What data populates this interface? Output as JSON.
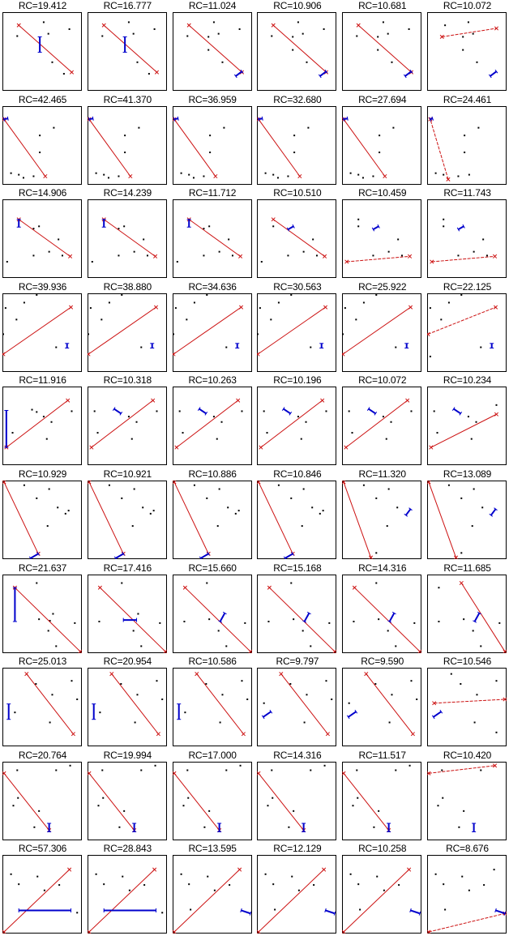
{
  "figure": {
    "rows": 10,
    "cols": 6,
    "label_prefix": "RC="
  },
  "colors": {
    "points": "#000000",
    "red_line": "#cc1111",
    "blue_segment": "#0000cc",
    "frame": "#000000"
  },
  "chart_data": {
    "type": "scatter",
    "title": "",
    "xlabel": "",
    "ylabel": "",
    "grid": false,
    "legend": null,
    "note": "10x6 grid of small-multiple scatter panels (no axes/ticks). Each panel: black data points, a red line segment with x-markers at ends, a blue short segment with end ticks; titled RC=value. Coordinates normalized 0-100 (x right, y down).",
    "panels": [
      {
        "title": "RC=19.412",
        "rc": 19.412,
        "points": [
          [
            18,
            30
          ],
          [
            52,
            12
          ],
          [
            58,
            27
          ],
          [
            85,
            21
          ],
          [
            63,
            64
          ],
          [
            78,
            79
          ]
        ],
        "red": [
          [
            20,
            16
          ],
          [
            88,
            77
          ]
        ],
        "red_dashed": false,
        "blue": [
          [
            47,
            31
          ],
          [
            47,
            51
          ]
        ]
      },
      {
        "title": "RC=16.777",
        "rc": 16.777,
        "points": [
          [
            18,
            30
          ],
          [
            52,
            12
          ],
          [
            58,
            27
          ],
          [
            85,
            21
          ],
          [
            63,
            64
          ],
          [
            78,
            79
          ]
        ],
        "red": [
          [
            20,
            16
          ],
          [
            88,
            77
          ]
        ],
        "red_dashed": false,
        "blue": [
          [
            47,
            31
          ],
          [
            47,
            51
          ]
        ]
      },
      {
        "title": "RC=11.024",
        "rc": 11.024,
        "points": [
          [
            18,
            30
          ],
          [
            52,
            12
          ],
          [
            58,
            27
          ],
          [
            85,
            21
          ],
          [
            45,
            31
          ],
          [
            45,
            48
          ],
          [
            63,
            64
          ]
        ],
        "red": [
          [
            20,
            16
          ],
          [
            88,
            77
          ]
        ],
        "red_dashed": false,
        "blue": [
          [
            80,
            82
          ],
          [
            88,
            76
          ]
        ]
      },
      {
        "title": "RC=10.906",
        "rc": 10.906,
        "points": [
          [
            18,
            30
          ],
          [
            52,
            12
          ],
          [
            58,
            27
          ],
          [
            85,
            21
          ],
          [
            45,
            31
          ],
          [
            45,
            48
          ],
          [
            63,
            64
          ]
        ],
        "red": [
          [
            20,
            16
          ],
          [
            88,
            77
          ]
        ],
        "red_dashed": false,
        "blue": [
          [
            80,
            82
          ],
          [
            88,
            76
          ]
        ]
      },
      {
        "title": "RC=10.681",
        "rc": 10.681,
        "points": [
          [
            18,
            30
          ],
          [
            52,
            12
          ],
          [
            58,
            27
          ],
          [
            85,
            21
          ],
          [
            45,
            31
          ],
          [
            45,
            48
          ],
          [
            63,
            64
          ]
        ],
        "red": [
          [
            20,
            16
          ],
          [
            88,
            77
          ]
        ],
        "red_dashed": false,
        "blue": [
          [
            80,
            82
          ],
          [
            88,
            76
          ]
        ]
      },
      {
        "title": "RC=10.072",
        "rc": 10.072,
        "points": [
          [
            22,
            16
          ],
          [
            52,
            12
          ],
          [
            58,
            27
          ],
          [
            45,
            31
          ],
          [
            45,
            48
          ],
          [
            63,
            64
          ]
        ],
        "red": [
          [
            18,
            31
          ],
          [
            88,
            20
          ]
        ],
        "red_dashed": true,
        "blue": [
          [
            80,
            82
          ],
          [
            88,
            76
          ]
        ]
      },
      {
        "title": "RC=42.465",
        "rc": 42.465,
        "points": [
          [
            65,
            27
          ],
          [
            47,
            37
          ],
          [
            47,
            59
          ],
          [
            10,
            86
          ],
          [
            20,
            88
          ],
          [
            26,
            92
          ],
          [
            39,
            90
          ]
        ],
        "red": [
          [
            54,
            90
          ],
          [
            1,
            16
          ]
        ],
        "red_dashed": false,
        "blue": [
          [
            1,
            16
          ],
          [
            6,
            15
          ]
        ]
      },
      {
        "title": "RC=41.370",
        "rc": 41.37,
        "points": [
          [
            65,
            27
          ],
          [
            47,
            37
          ],
          [
            47,
            59
          ],
          [
            10,
            86
          ],
          [
            20,
            88
          ],
          [
            26,
            92
          ],
          [
            39,
            90
          ]
        ],
        "red": [
          [
            54,
            90
          ],
          [
            1,
            16
          ]
        ],
        "red_dashed": false,
        "blue": [
          [
            1,
            16
          ],
          [
            6,
            15
          ]
        ]
      },
      {
        "title": "RC=36.959",
        "rc": 36.959,
        "points": [
          [
            65,
            27
          ],
          [
            47,
            37
          ],
          [
            47,
            59
          ],
          [
            10,
            86
          ],
          [
            20,
            88
          ],
          [
            26,
            92
          ],
          [
            39,
            90
          ]
        ],
        "red": [
          [
            54,
            90
          ],
          [
            1,
            16
          ]
        ],
        "red_dashed": false,
        "blue": [
          [
            1,
            16
          ],
          [
            6,
            15
          ]
        ]
      },
      {
        "title": "RC=32.680",
        "rc": 32.68,
        "points": [
          [
            65,
            27
          ],
          [
            47,
            37
          ],
          [
            47,
            59
          ],
          [
            10,
            86
          ],
          [
            20,
            88
          ],
          [
            26,
            92
          ],
          [
            39,
            90
          ]
        ],
        "red": [
          [
            54,
            90
          ],
          [
            1,
            16
          ]
        ],
        "red_dashed": false,
        "blue": [
          [
            1,
            16
          ],
          [
            6,
            15
          ]
        ]
      },
      {
        "title": "RC=27.694",
        "rc": 27.694,
        "points": [
          [
            65,
            27
          ],
          [
            47,
            37
          ],
          [
            47,
            59
          ],
          [
            10,
            86
          ],
          [
            20,
            88
          ],
          [
            26,
            92
          ],
          [
            39,
            90
          ]
        ],
        "red": [
          [
            54,
            90
          ],
          [
            1,
            16
          ]
        ],
        "red_dashed": false,
        "blue": [
          [
            1,
            16
          ],
          [
            6,
            15
          ]
        ]
      },
      {
        "title": "RC=24.461",
        "rc": 24.461,
        "points": [
          [
            65,
            27
          ],
          [
            47,
            37
          ],
          [
            47,
            59
          ],
          [
            10,
            86
          ],
          [
            20,
            88
          ],
          [
            39,
            90
          ],
          [
            53,
            88
          ]
        ],
        "red": [
          [
            26,
            94
          ],
          [
            3,
            16
          ]
        ],
        "red_dashed": true,
        "blue": [
          [
            3,
            16
          ],
          [
            6,
            15
          ]
        ]
      },
      {
        "title": "RC=14.906",
        "rc": 14.906,
        "points": [
          [
            39,
            37
          ],
          [
            46,
            34
          ],
          [
            71,
            51
          ],
          [
            59,
            67
          ],
          [
            39,
            72
          ],
          [
            76,
            72
          ],
          [
            5,
            80
          ]
        ],
        "red": [
          [
            20,
            25
          ],
          [
            86,
            73
          ]
        ],
        "red_dashed": false,
        "blue": [
          [
            20,
            25
          ],
          [
            20,
            35
          ]
        ]
      },
      {
        "title": "RC=14.239",
        "rc": 14.239,
        "points": [
          [
            39,
            37
          ],
          [
            46,
            34
          ],
          [
            71,
            51
          ],
          [
            59,
            67
          ],
          [
            39,
            72
          ],
          [
            76,
            72
          ],
          [
            5,
            80
          ]
        ],
        "red": [
          [
            20,
            25
          ],
          [
            86,
            73
          ]
        ],
        "red_dashed": false,
        "blue": [
          [
            20,
            25
          ],
          [
            20,
            35
          ]
        ]
      },
      {
        "title": "RC=11.712",
        "rc": 11.712,
        "points": [
          [
            39,
            37
          ],
          [
            46,
            34
          ],
          [
            71,
            51
          ],
          [
            59,
            67
          ],
          [
            39,
            72
          ],
          [
            76,
            72
          ],
          [
            5,
            80
          ]
        ],
        "red": [
          [
            20,
            25
          ],
          [
            86,
            73
          ]
        ],
        "red_dashed": false,
        "blue": [
          [
            20,
            25
          ],
          [
            20,
            35
          ]
        ]
      },
      {
        "title": "RC=10.510",
        "rc": 10.51,
        "points": [
          [
            20,
            34
          ],
          [
            71,
            51
          ],
          [
            59,
            67
          ],
          [
            39,
            72
          ],
          [
            76,
            72
          ],
          [
            5,
            80
          ]
        ],
        "red": [
          [
            20,
            25
          ],
          [
            86,
            73
          ]
        ],
        "red_dashed": false,
        "blue": [
          [
            39,
            38
          ],
          [
            46,
            34
          ]
        ]
      },
      {
        "title": "RC=10.459",
        "rc": 10.459,
        "points": [
          [
            20,
            25
          ],
          [
            20,
            34
          ],
          [
            71,
            51
          ],
          [
            59,
            67
          ],
          [
            39,
            72
          ],
          [
            76,
            72
          ]
        ],
        "red": [
          [
            5,
            80
          ],
          [
            86,
            73
          ]
        ],
        "red_dashed": true,
        "blue": [
          [
            39,
            38
          ],
          [
            46,
            34
          ]
        ]
      },
      {
        "title": "RC=11.743",
        "rc": 11.743,
        "points": [
          [
            20,
            25
          ],
          [
            20,
            34
          ],
          [
            71,
            51
          ],
          [
            59,
            67
          ],
          [
            39,
            72
          ],
          [
            76,
            72
          ]
        ],
        "red": [
          [
            5,
            80
          ],
          [
            86,
            73
          ]
        ],
        "red_dashed": true,
        "blue": [
          [
            39,
            38
          ],
          [
            46,
            34
          ]
        ]
      },
      {
        "title": "RC=39.936",
        "rc": 39.936,
        "points": [
          [
            43,
            1
          ],
          [
            27,
            11
          ],
          [
            3,
            18
          ],
          [
            17,
            33
          ],
          [
            0,
            52
          ],
          [
            68,
            69
          ]
        ],
        "red": [
          [
            0,
            78
          ],
          [
            87,
            17
          ]
        ],
        "red_dashed": false,
        "blue": [
          [
            82,
            64
          ],
          [
            82,
            70
          ]
        ]
      },
      {
        "title": "RC=38.880",
        "rc": 38.88,
        "points": [
          [
            43,
            1
          ],
          [
            27,
            11
          ],
          [
            3,
            18
          ],
          [
            17,
            33
          ],
          [
            0,
            52
          ],
          [
            68,
            69
          ]
        ],
        "red": [
          [
            0,
            78
          ],
          [
            87,
            17
          ]
        ],
        "red_dashed": false,
        "blue": [
          [
            82,
            64
          ],
          [
            82,
            70
          ]
        ]
      },
      {
        "title": "RC=34.636",
        "rc": 34.636,
        "points": [
          [
            43,
            1
          ],
          [
            27,
            11
          ],
          [
            3,
            18
          ],
          [
            17,
            33
          ],
          [
            0,
            52
          ],
          [
            68,
            69
          ]
        ],
        "red": [
          [
            0,
            78
          ],
          [
            87,
            17
          ]
        ],
        "red_dashed": false,
        "blue": [
          [
            82,
            64
          ],
          [
            82,
            70
          ]
        ]
      },
      {
        "title": "RC=30.563",
        "rc": 30.563,
        "points": [
          [
            43,
            1
          ],
          [
            27,
            11
          ],
          [
            3,
            18
          ],
          [
            17,
            33
          ],
          [
            0,
            52
          ],
          [
            68,
            69
          ]
        ],
        "red": [
          [
            0,
            78
          ],
          [
            87,
            17
          ]
        ],
        "red_dashed": false,
        "blue": [
          [
            82,
            64
          ],
          [
            82,
            70
          ]
        ]
      },
      {
        "title": "RC=25.922",
        "rc": 25.922,
        "points": [
          [
            43,
            1
          ],
          [
            27,
            11
          ],
          [
            3,
            18
          ],
          [
            17,
            33
          ],
          [
            0,
            52
          ],
          [
            68,
            69
          ]
        ],
        "red": [
          [
            0,
            78
          ],
          [
            87,
            17
          ]
        ],
        "red_dashed": false,
        "blue": [
          [
            82,
            64
          ],
          [
            82,
            70
          ]
        ]
      },
      {
        "title": "RC=22.125",
        "rc": 22.125,
        "points": [
          [
            43,
            1
          ],
          [
            27,
            11
          ],
          [
            3,
            18
          ],
          [
            17,
            33
          ],
          [
            68,
            69
          ],
          [
            3,
            81
          ]
        ],
        "red": [
          [
            0,
            52
          ],
          [
            87,
            17
          ]
        ],
        "red_dashed": true,
        "blue": [
          [
            82,
            64
          ],
          [
            82,
            70
          ]
        ]
      }
    ]
  }
}
